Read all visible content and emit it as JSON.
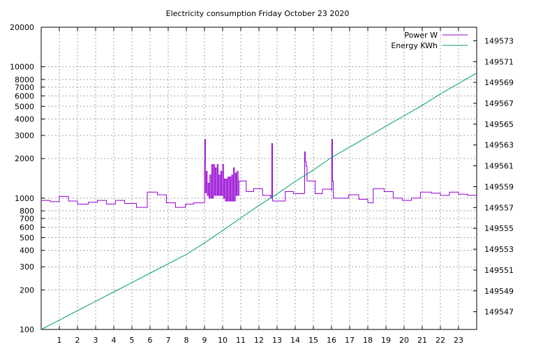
{
  "chart_data": {
    "type": "line",
    "title": "Electricity consumption Friday October 23 2020",
    "x_range": [
      0,
      24
    ],
    "x_ticks": [
      "1",
      "2",
      "3",
      "4",
      "5",
      "6",
      "7",
      "8",
      "9",
      "10",
      "11",
      "12",
      "13",
      "14",
      "15",
      "16",
      "17",
      "18",
      "19",
      "20",
      "21",
      "22",
      "23"
    ],
    "y_left": {
      "scale": "log",
      "range": [
        100,
        20000
      ],
      "ticks": [
        100,
        200,
        300,
        400,
        500,
        600,
        700,
        800,
        1000,
        2000,
        3000,
        4000,
        5000,
        6000,
        7000,
        8000,
        10000,
        20000
      ],
      "labels": [
        "100",
        "200",
        "300",
        "400",
        "500",
        "600",
        "700",
        "800",
        "1000",
        "2000",
        "3000",
        "4000",
        "5000",
        "6000",
        "7000",
        "8000",
        "10000",
        "20000"
      ]
    },
    "y_right": {
      "scale": "linear",
      "range": [
        149545.3,
        149574.3
      ],
      "ticks": [
        149547,
        149549,
        149551,
        149553,
        149555,
        149557,
        149559,
        149561,
        149563,
        149565,
        149567,
        149569,
        149571,
        149573
      ],
      "labels": [
        "149547",
        "149549",
        "149551",
        "149553",
        "149555",
        "149557",
        "149559",
        "149561",
        "149563",
        "149565",
        "149567",
        "149569",
        "149571",
        "149573"
      ]
    },
    "grid": true,
    "legend_position": "top-right",
    "series": [
      {
        "name": "Power W",
        "axis": "left",
        "color": "#9400d3",
        "step": true,
        "points": [
          [
            0,
            960
          ],
          [
            0.5,
            940
          ],
          [
            1,
            1030
          ],
          [
            1.5,
            950
          ],
          [
            2,
            900
          ],
          [
            2.6,
            930
          ],
          [
            3.1,
            960
          ],
          [
            3.6,
            900
          ],
          [
            4.1,
            960
          ],
          [
            4.6,
            910
          ],
          [
            5.25,
            850
          ],
          [
            5.85,
            1110
          ],
          [
            6.4,
            1060
          ],
          [
            6.9,
            920
          ],
          [
            7.4,
            850
          ],
          [
            7.95,
            900
          ],
          [
            8.4,
            920
          ],
          [
            8.95,
            920
          ],
          [
            9.0,
            1900
          ],
          [
            9.02,
            2800
          ],
          [
            9.05,
            1100
          ],
          [
            9.1,
            1600
          ],
          [
            9.15,
            1050
          ],
          [
            9.2,
            1300
          ],
          [
            9.25,
            1000
          ],
          [
            9.3,
            1500
          ],
          [
            9.35,
            1000
          ],
          [
            9.4,
            1800
          ],
          [
            9.45,
            1000
          ],
          [
            9.5,
            1800
          ],
          [
            9.55,
            1050
          ],
          [
            9.6,
            1700
          ],
          [
            9.65,
            1050
          ],
          [
            9.7,
            1800
          ],
          [
            9.75,
            1050
          ],
          [
            9.8,
            1500
          ],
          [
            9.85,
            1050
          ],
          [
            9.9,
            1600
          ],
          [
            9.95,
            1050
          ],
          [
            10.0,
            1800
          ],
          [
            10.05,
            1000
          ],
          [
            10.1,
            1400
          ],
          [
            10.15,
            950
          ],
          [
            10.2,
            1400
          ],
          [
            10.25,
            950
          ],
          [
            10.3,
            1450
          ],
          [
            10.35,
            950
          ],
          [
            10.4,
            1450
          ],
          [
            10.45,
            950
          ],
          [
            10.5,
            1500
          ],
          [
            10.55,
            950
          ],
          [
            10.6,
            1700
          ],
          [
            10.65,
            950
          ],
          [
            10.7,
            1550
          ],
          [
            10.75,
            1050
          ],
          [
            10.8,
            1600
          ],
          [
            10.85,
            1050
          ],
          [
            10.9,
            1350
          ],
          [
            10.95,
            1350
          ],
          [
            11.3,
            1120
          ],
          [
            11.7,
            1180
          ],
          [
            12.2,
            1050
          ],
          [
            12.65,
            1000
          ],
          [
            12.7,
            2600
          ],
          [
            12.75,
            950
          ],
          [
            13.45,
            1120
          ],
          [
            13.9,
            1080
          ],
          [
            14.5,
            1100
          ],
          [
            14.52,
            2250
          ],
          [
            14.55,
            1900
          ],
          [
            14.6,
            1750
          ],
          [
            14.65,
            1350
          ],
          [
            14.75,
            1350
          ],
          [
            15.1,
            1080
          ],
          [
            15.5,
            1170
          ],
          [
            16.0,
            1150
          ],
          [
            16.02,
            2800
          ],
          [
            16.05,
            1350
          ],
          [
            16.1,
            1000
          ],
          [
            16.5,
            1000
          ],
          [
            16.95,
            1060
          ],
          [
            17.5,
            980
          ],
          [
            18.0,
            920
          ],
          [
            18.3,
            1180
          ],
          [
            18.9,
            1120
          ],
          [
            19.4,
            1000
          ],
          [
            19.9,
            960
          ],
          [
            20.4,
            1000
          ],
          [
            20.9,
            1110
          ],
          [
            21.5,
            1090
          ],
          [
            22.0,
            1050
          ],
          [
            22.5,
            1110
          ],
          [
            23.0,
            1070
          ],
          [
            23.5,
            1050
          ],
          [
            24.0,
            1050
          ]
        ]
      },
      {
        "name": "Energy KWh",
        "axis": "right",
        "color": "#009e73",
        "step": false,
        "points": [
          [
            0,
            149545.3
          ],
          [
            1,
            149546.2
          ],
          [
            2,
            149547.1
          ],
          [
            3,
            149548.0
          ],
          [
            4,
            149548.9
          ],
          [
            5,
            149549.8
          ],
          [
            6,
            149550.7
          ],
          [
            7,
            149551.6
          ],
          [
            8,
            149552.5
          ],
          [
            9,
            149553.6
          ],
          [
            10,
            149554.8
          ],
          [
            11,
            149556.0
          ],
          [
            12,
            149557.2
          ],
          [
            13,
            149558.3
          ],
          [
            14,
            149559.5
          ],
          [
            15,
            149560.6
          ],
          [
            16,
            149561.8
          ],
          [
            17,
            149562.8
          ],
          [
            18,
            149563.8
          ],
          [
            19,
            149564.8
          ],
          [
            20,
            149565.8
          ],
          [
            21,
            149566.8
          ],
          [
            22,
            149567.9
          ],
          [
            23,
            149568.9
          ],
          [
            24,
            149569.9
          ]
        ]
      }
    ]
  }
}
